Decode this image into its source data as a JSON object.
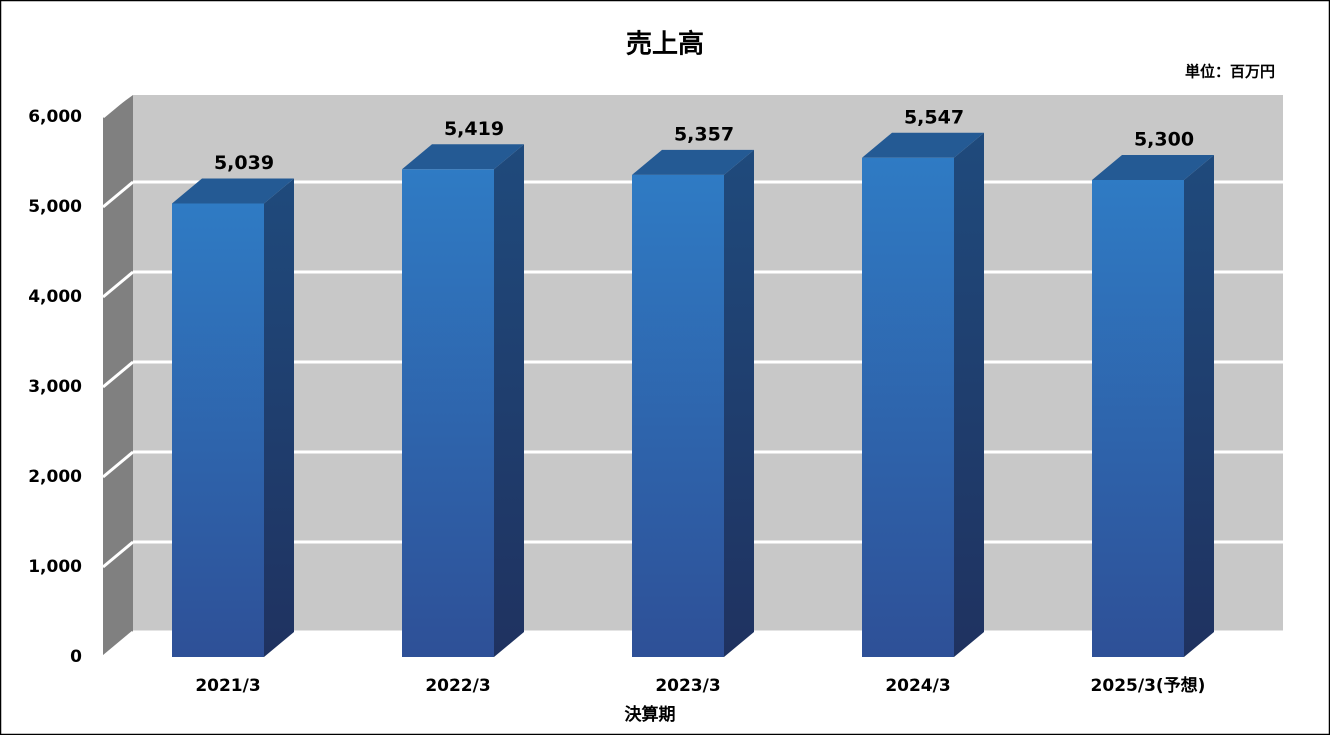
{
  "chart_data": {
    "type": "bar3d",
    "title": "売上高",
    "unit_label": "単位：百万円",
    "x_label": "決算期",
    "categories": [
      "2021/3",
      "2022/3",
      "2023/3",
      "2024/3",
      "2025/3(予想)"
    ],
    "values": [
      5039,
      5419,
      5357,
      5547,
      5300
    ],
    "value_labels": [
      "5,039",
      "5,419",
      "5,357",
      "5,547",
      "5,300"
    ],
    "color": "#2f6fb8",
    "ylim": [
      0,
      6000
    ],
    "yticks": [
      0,
      {
        "value": 1000,
        "label": "1,000"
      },
      {
        "value": 2000,
        "label": "2,000"
      },
      {
        "value": 3000,
        "label": "3,000"
      },
      {
        "value": 4000,
        "label": "4,000"
      },
      {
        "value": 5000,
        "label": "5,000"
      },
      {
        "value": 6000,
        "label": "6,000"
      }
    ],
    "grid": true
  }
}
